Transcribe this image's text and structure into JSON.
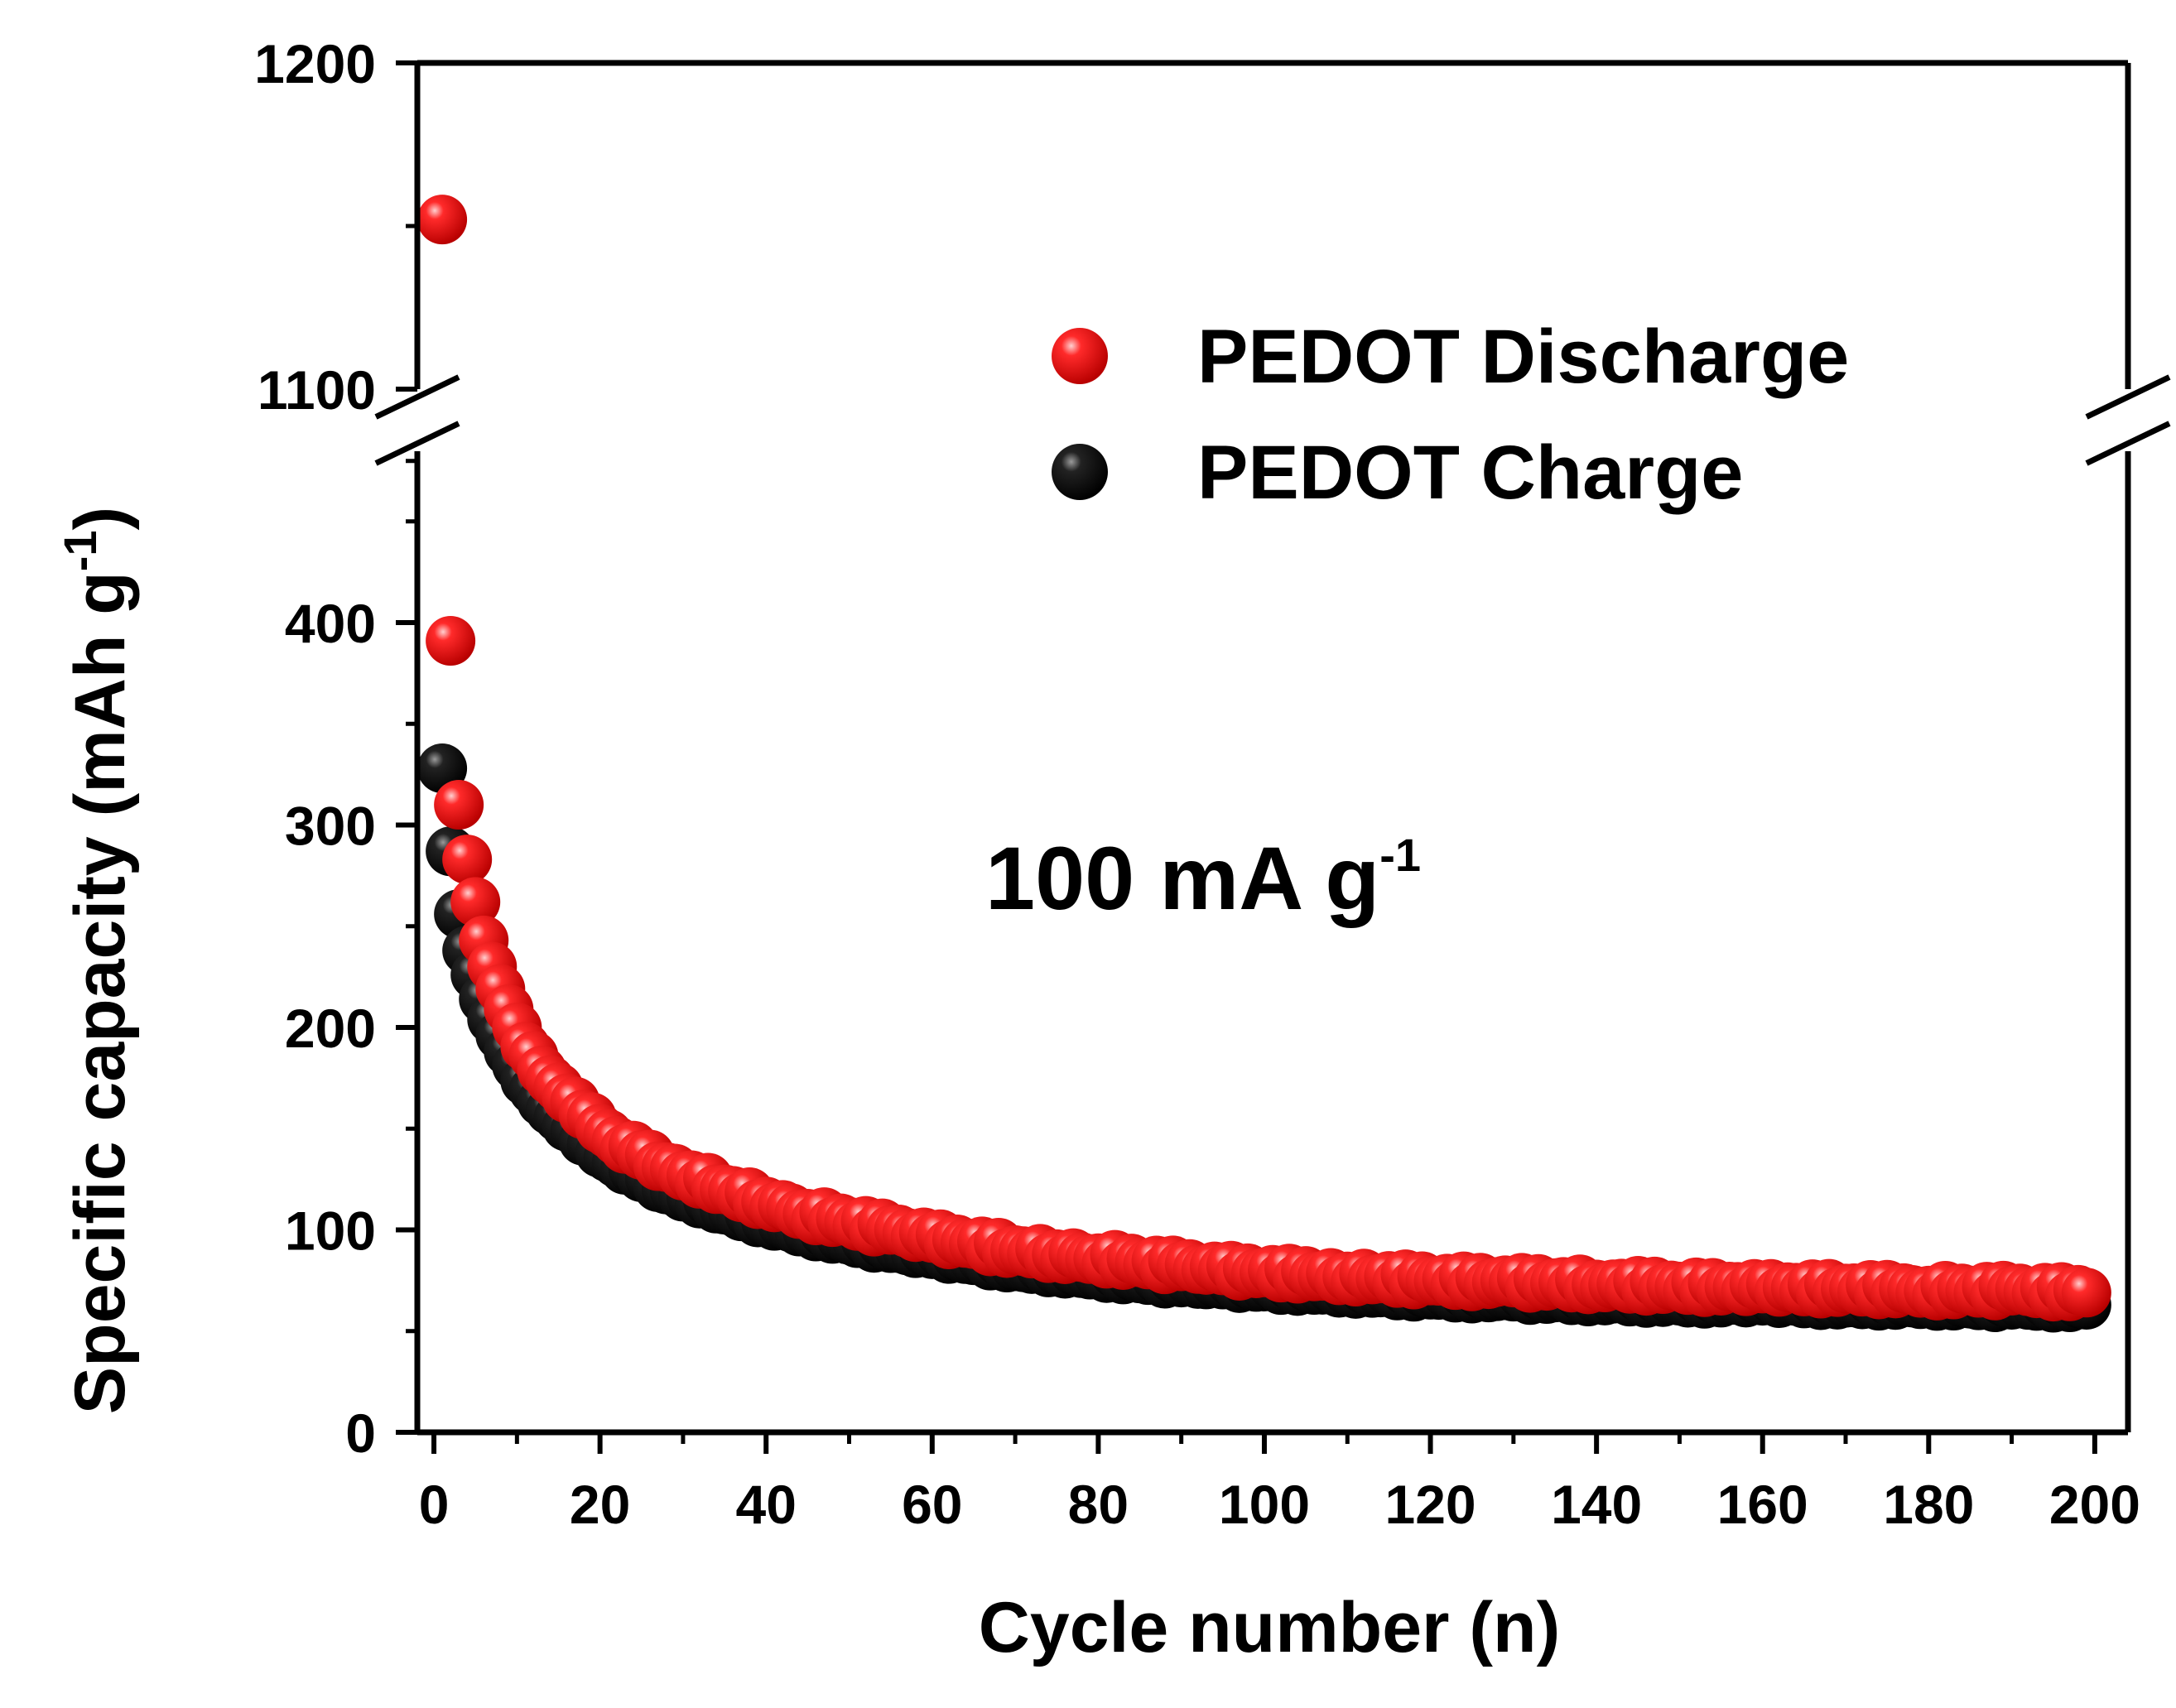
{
  "chart_data": {
    "type": "scatter",
    "title": "",
    "xlabel": "Cycle number (n)",
    "ylabel": "Specific capacity (mAh g",
    "ylabel_sup": "-1",
    "ylabel_close": ")",
    "xlim": [
      -2,
      204
    ],
    "ylim_lower": [
      0,
      480
    ],
    "ylim_upper": [
      1100,
      1200
    ],
    "axis_break": "y between 480 and 1100",
    "x_ticks": [
      "0",
      "20",
      "40",
      "60",
      "80",
      "100",
      "120",
      "140",
      "160",
      "180",
      "200"
    ],
    "y_ticks_lower": [
      "0",
      "100",
      "200",
      "300",
      "400"
    ],
    "y_ticks_upper": [
      "1100",
      "1200"
    ],
    "annotation": "100 mA g",
    "annotation_sup": "-1",
    "legend_position": "top-right",
    "series": [
      {
        "name": "PEDOT Discharge",
        "color": "#ee1111",
        "points": [
          [
            1,
            1152
          ],
          [
            2,
            391
          ],
          [
            3,
            310
          ],
          [
            4,
            283
          ],
          [
            5,
            262
          ],
          [
            6,
            243
          ],
          [
            7,
            230
          ],
          [
            8,
            219
          ],
          [
            9,
            209
          ],
          [
            10,
            200
          ],
          [
            12,
            186
          ],
          [
            14,
            174
          ],
          [
            16,
            165
          ],
          [
            18,
            157
          ],
          [
            20,
            150
          ],
          [
            22,
            144
          ],
          [
            25,
            137
          ],
          [
            28,
            131
          ],
          [
            31,
            127
          ],
          [
            35,
            120
          ],
          [
            40,
            114
          ],
          [
            45,
            108
          ],
          [
            50,
            104
          ],
          [
            55,
            100
          ],
          [
            60,
            96
          ],
          [
            65,
            93
          ],
          [
            70,
            90
          ],
          [
            75,
            88
          ],
          [
            80,
            86
          ],
          [
            85,
            84
          ],
          [
            90,
            82
          ],
          [
            95,
            80
          ],
          [
            100,
            79
          ],
          [
            110,
            77
          ],
          [
            120,
            75
          ],
          [
            130,
            74
          ],
          [
            140,
            73
          ],
          [
            150,
            72
          ],
          [
            160,
            71
          ],
          [
            170,
            71
          ],
          [
            180,
            70
          ],
          [
            190,
            70
          ],
          [
            199,
            69
          ]
        ]
      },
      {
        "name": "PEDOT Charge",
        "color": "#111111",
        "points": [
          [
            1,
            328
          ],
          [
            2,
            287
          ],
          [
            3,
            256
          ],
          [
            4,
            238
          ],
          [
            5,
            226
          ],
          [
            6,
            214
          ],
          [
            7,
            204
          ],
          [
            8,
            196
          ],
          [
            9,
            188
          ],
          [
            10,
            181
          ],
          [
            12,
            169
          ],
          [
            14,
            159
          ],
          [
            16,
            151
          ],
          [
            18,
            144
          ],
          [
            20,
            138
          ],
          [
            22,
            133
          ],
          [
            25,
            126
          ],
          [
            28,
            120
          ],
          [
            31,
            116
          ],
          [
            35,
            110
          ],
          [
            40,
            104
          ],
          [
            45,
            99
          ],
          [
            50,
            95
          ],
          [
            55,
            91
          ],
          [
            60,
            88
          ],
          [
            65,
            85
          ],
          [
            70,
            82
          ],
          [
            75,
            80
          ],
          [
            80,
            78
          ],
          [
            85,
            76
          ],
          [
            90,
            74
          ],
          [
            95,
            73
          ],
          [
            100,
            72
          ],
          [
            110,
            70
          ],
          [
            120,
            68
          ],
          [
            130,
            67
          ],
          [
            140,
            66
          ],
          [
            150,
            65
          ],
          [
            160,
            65
          ],
          [
            170,
            64
          ],
          [
            180,
            64
          ],
          [
            190,
            63
          ],
          [
            199,
            63
          ]
        ]
      }
    ]
  }
}
